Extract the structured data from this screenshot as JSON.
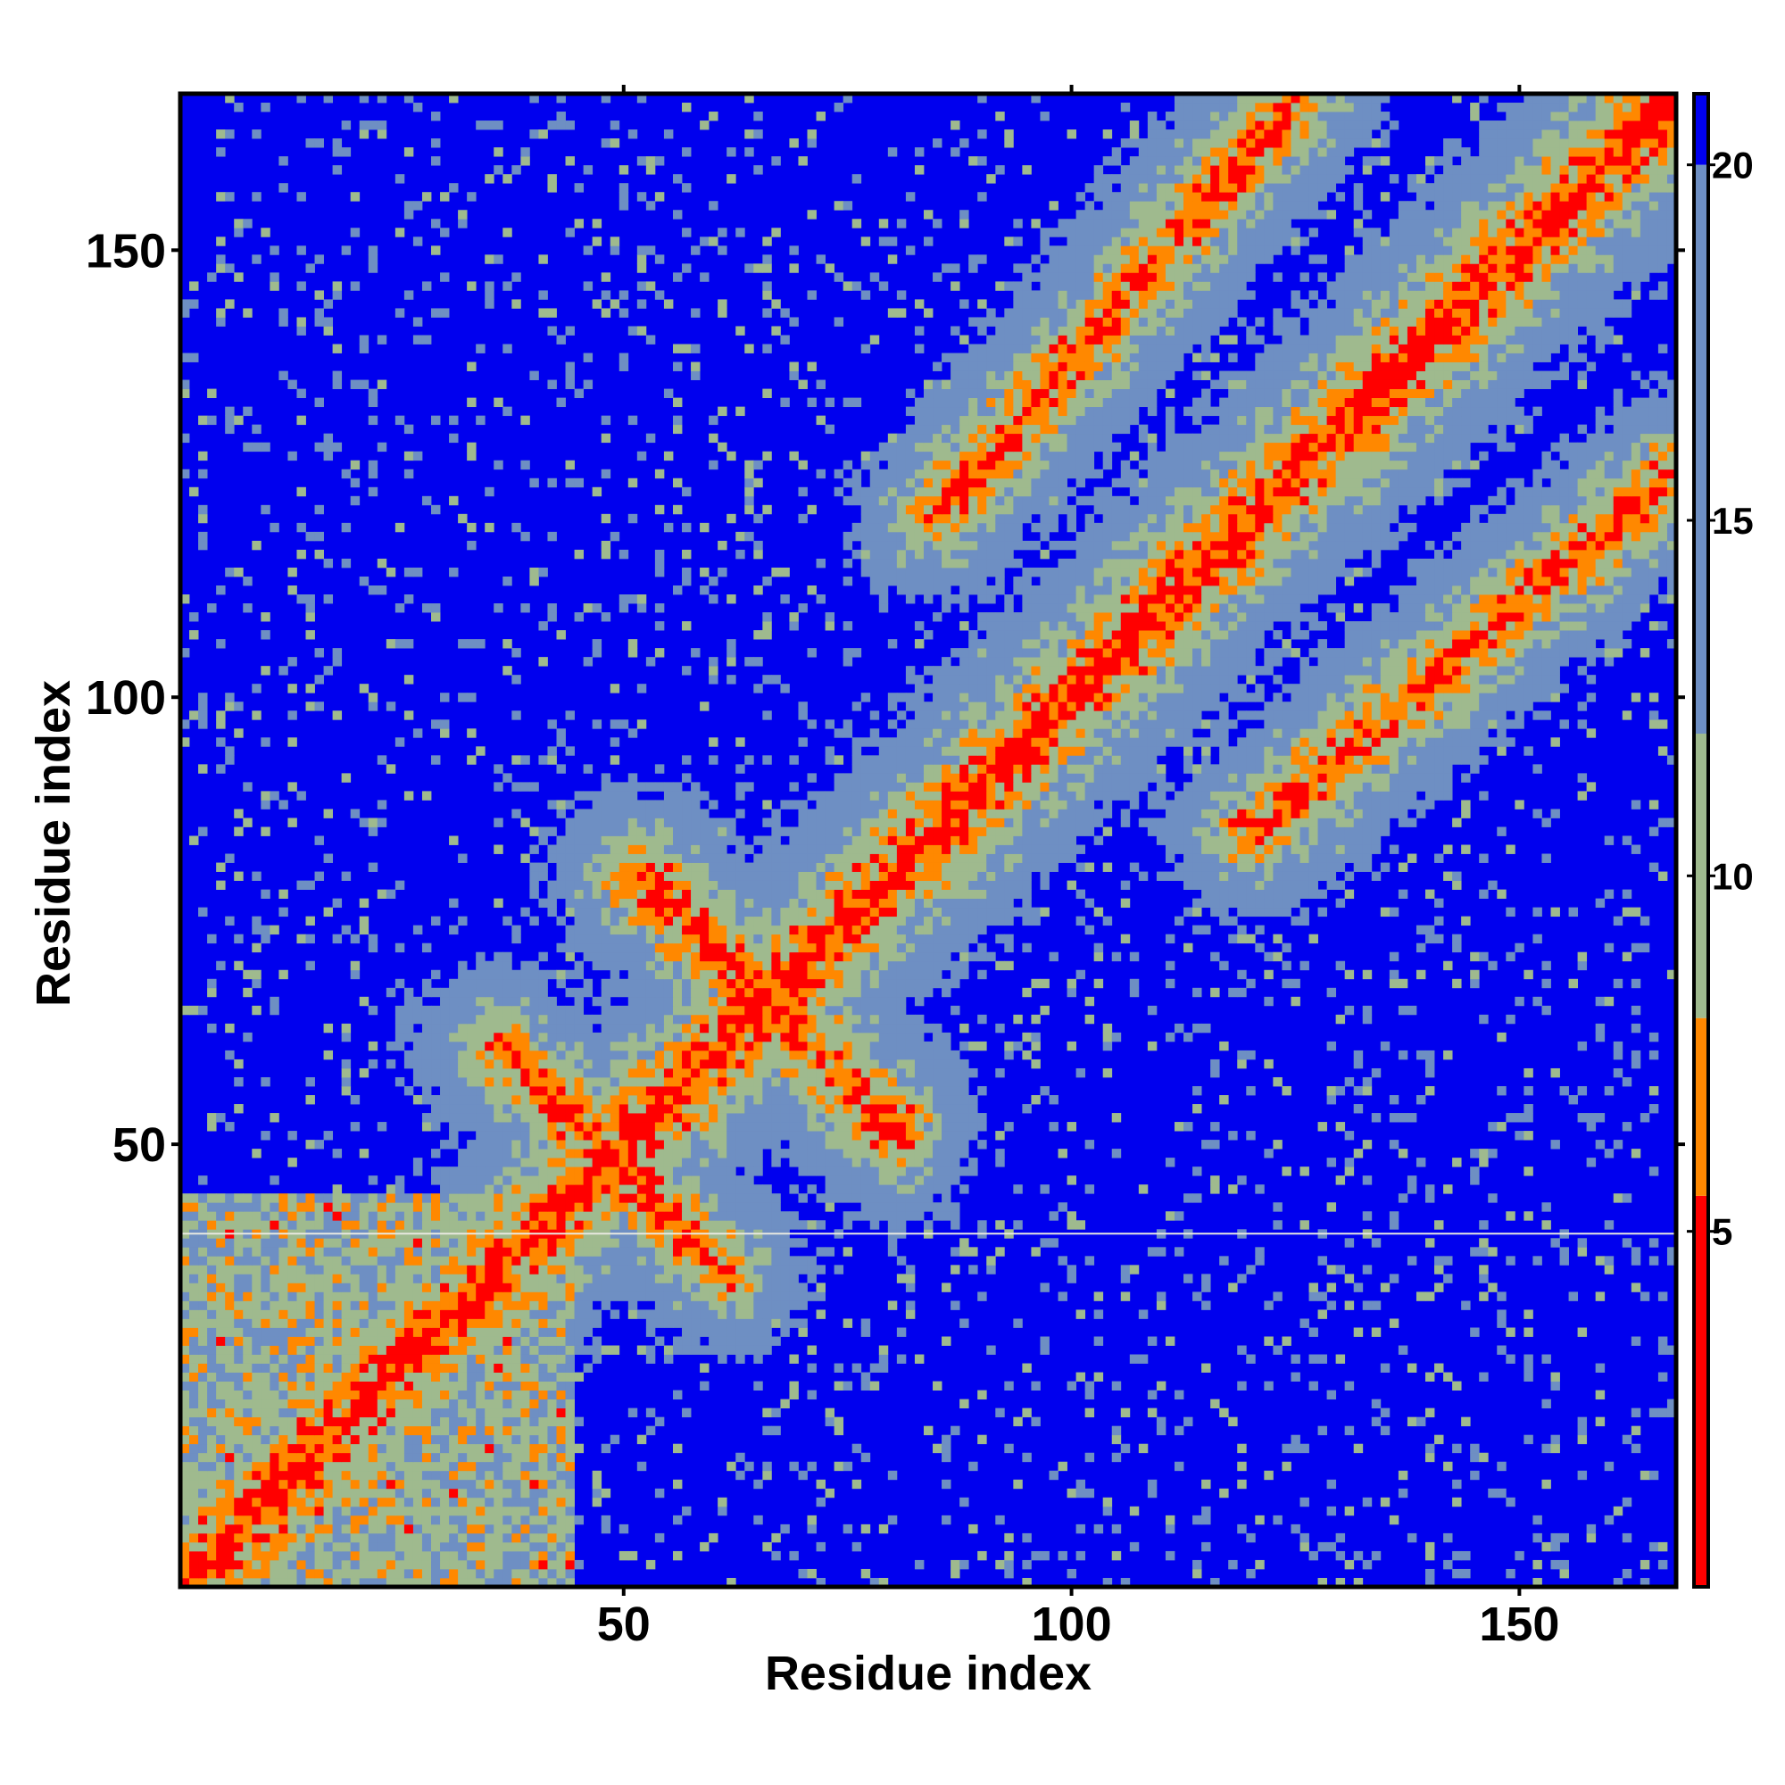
{
  "chart_data": {
    "type": "heatmap",
    "title": "",
    "xlabel": "Residue index",
    "ylabel": "Residue index",
    "n_residues": 167,
    "xlim": [
      1,
      167
    ],
    "ylim": [
      1,
      167
    ],
    "x_ticks": [
      50,
      100,
      150
    ],
    "y_ticks": [
      50,
      100,
      150
    ],
    "x_tick_labels": [
      "50",
      "100",
      "150"
    ],
    "y_tick_labels": [
      "50",
      "100",
      "150"
    ],
    "colorbar": {
      "ticks": [
        5,
        10,
        15,
        20
      ],
      "tick_labels": [
        "5",
        "10",
        "15",
        "20"
      ],
      "range": [
        0,
        21
      ],
      "colors": [
        {
          "from": 0,
          "to": 5.5,
          "color": "#ff0000"
        },
        {
          "from": 5.5,
          "to": 8,
          "color": "#ff8800"
        },
        {
          "from": 8,
          "to": 12,
          "color": "#9fba8e"
        },
        {
          "from": 12,
          "to": 20,
          "color": "#6e8fc3"
        },
        {
          "from": 20,
          "to": 21,
          "color": "#0000ee"
        }
      ]
    },
    "gap_row_residue": 40,
    "contact_features": [
      {
        "type": "diagonal",
        "description": "main diagonal",
        "x": [
          1,
          167
        ],
        "y": [
          1,
          167
        ]
      },
      {
        "type": "antiparallel",
        "x": [
          51,
          80
        ],
        "y": [
          80,
          53
        ]
      },
      {
        "type": "antiparallel",
        "x": [
          36,
          60
        ],
        "y": [
          61,
          37
        ]
      },
      {
        "type": "parallel",
        "x": [
          120,
          167
        ],
        "y": [
          85,
          125
        ]
      }
    ],
    "grid": false,
    "legend": "colorbar-right"
  }
}
